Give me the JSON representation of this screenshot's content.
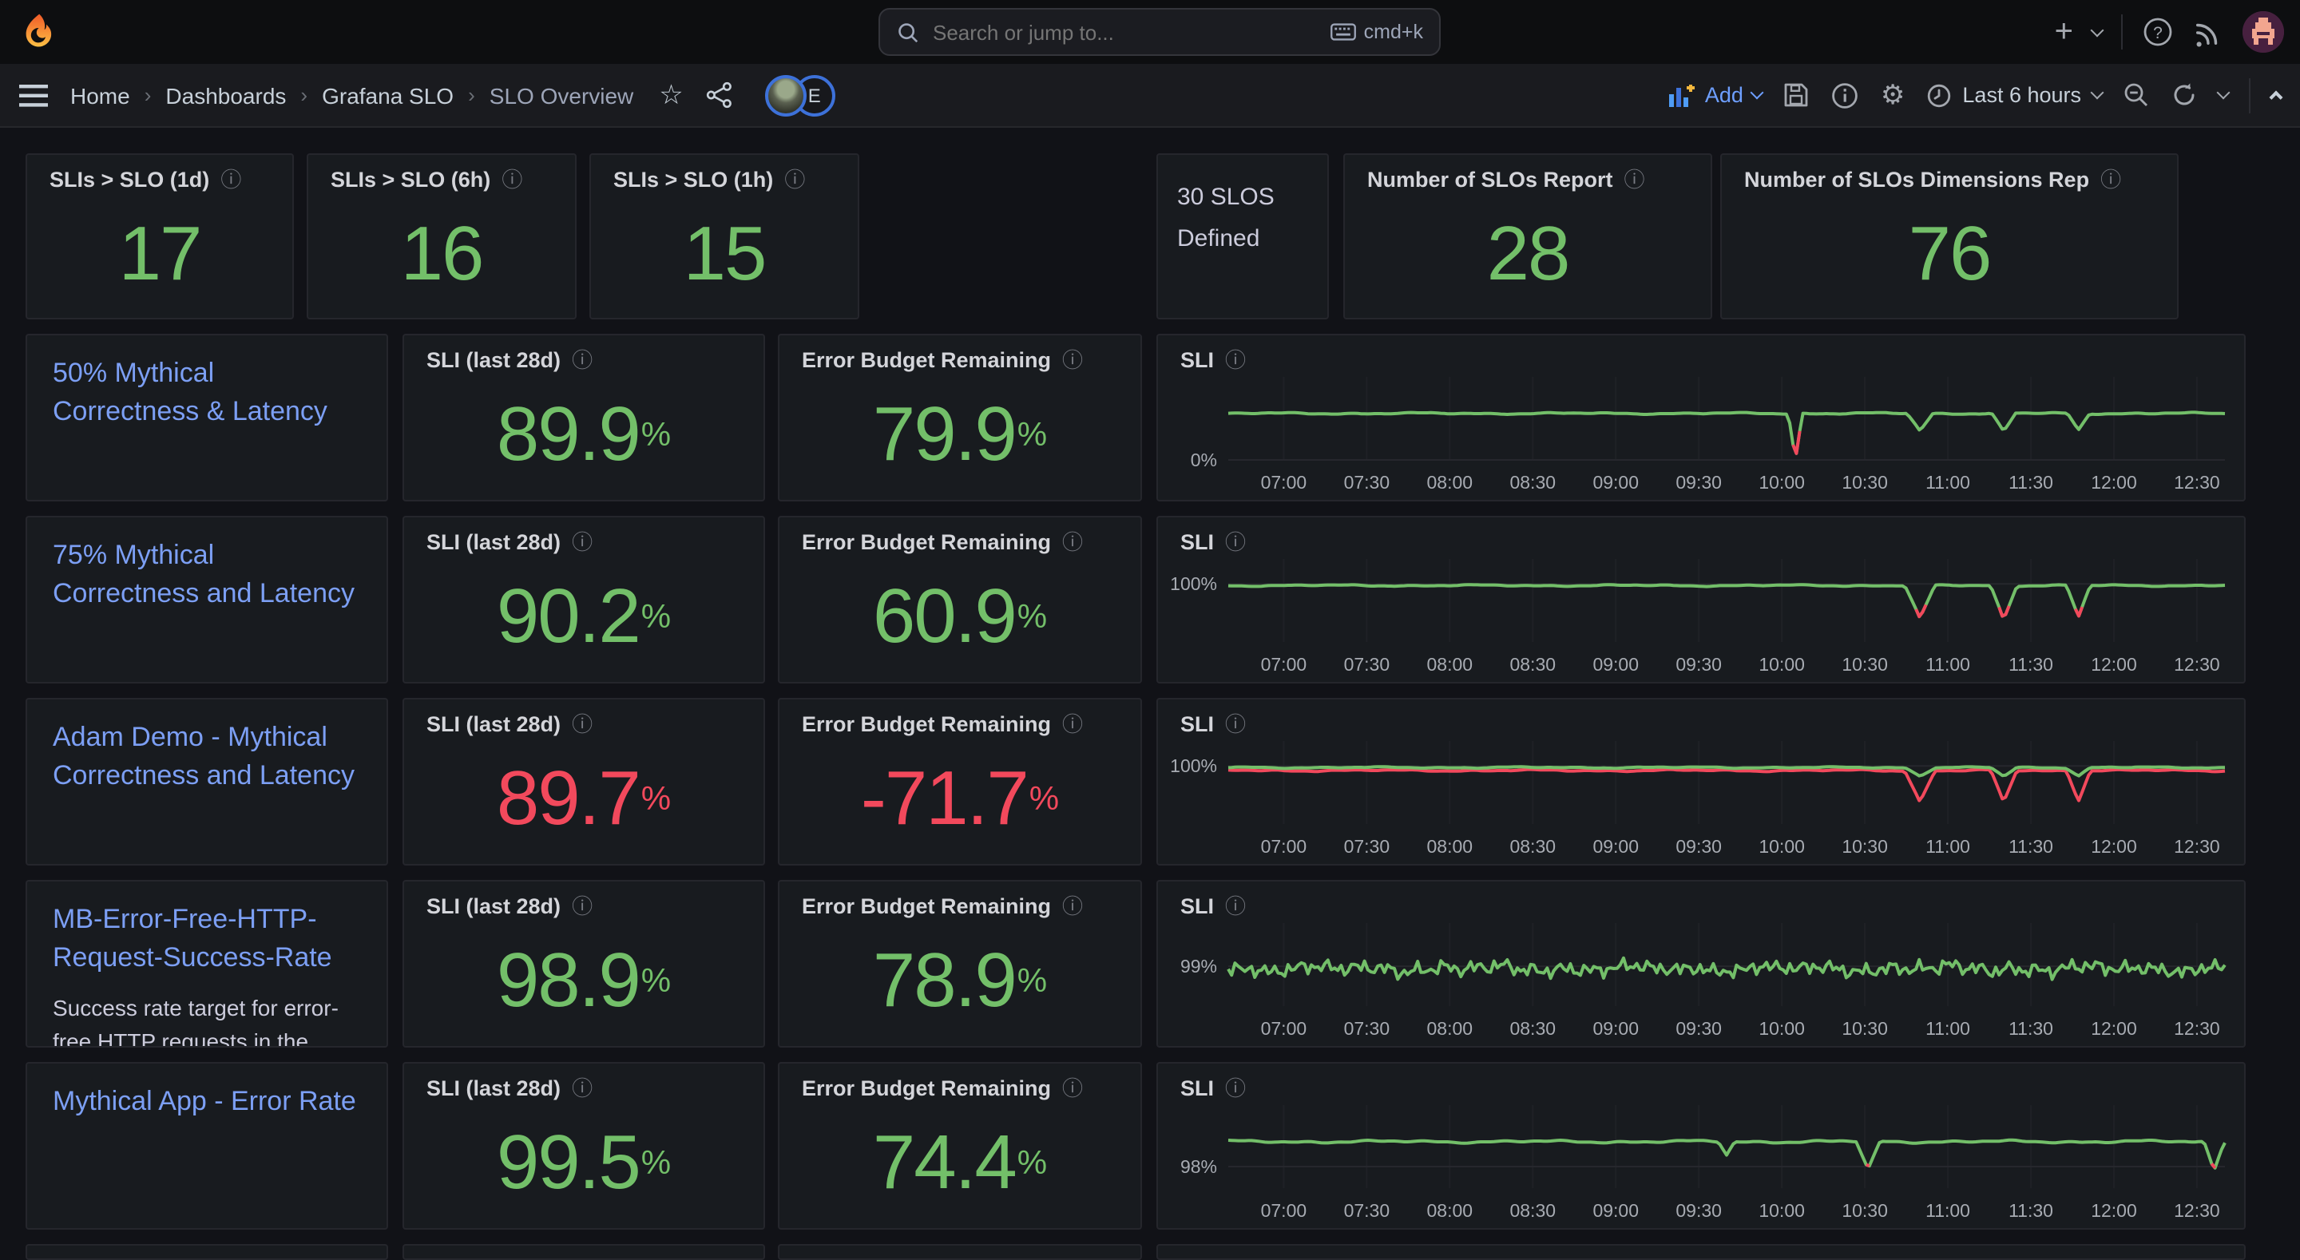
{
  "colors": {
    "green": "#73BF69",
    "red": "#F2495C",
    "link_blue": "#7C9FF4",
    "accent_blue": "#6E9FFF"
  },
  "topbar": {
    "search_placeholder": "Search or jump to...",
    "shortcut": "cmd+k"
  },
  "breadcrumb": {
    "items": [
      "Home",
      "Dashboards",
      "Grafana SLO",
      "SLO Overview"
    ],
    "avatar_badge": "E"
  },
  "toolbar": {
    "add_label": "Add",
    "time_range": "Last 6 hours"
  },
  "stats": [
    {
      "title": "SLIs > SLO (1d)",
      "value": "17",
      "color": "#73BF69"
    },
    {
      "title": "SLIs > SLO (6h)",
      "value": "16",
      "color": "#73BF69"
    },
    {
      "title": "SLIs > SLO (1h)",
      "value": "15",
      "color": "#73BF69"
    },
    {
      "text": "30 SLOS\nDefined"
    },
    {
      "title": "Number of SLOs Report",
      "value": "28",
      "color": "#73BF69"
    },
    {
      "title": "Number of SLOs Dimensions Rep",
      "value": "76",
      "color": "#73BF69"
    }
  ],
  "rows": [
    {
      "title": "50% Mythical Correctness & Latency",
      "description": "",
      "sli_label": "SLI (last 28d)",
      "sli_value": "89.9",
      "sli_unit": "%",
      "sli_color": "#73BF69",
      "eb_label": "Error Budget Remaining",
      "eb_value": "79.9",
      "eb_unit": "%",
      "eb_color": "#73BF69",
      "chart_title": "SLI"
    },
    {
      "title": "75% Mythical Correctness and Latency",
      "description": "",
      "sli_label": "SLI (last 28d)",
      "sli_value": "90.2",
      "sli_unit": "%",
      "sli_color": "#73BF69",
      "eb_label": "Error Budget Remaining",
      "eb_value": "60.9",
      "eb_unit": "%",
      "eb_color": "#73BF69",
      "chart_title": "SLI"
    },
    {
      "title": "Adam Demo - Mythical Correctness and Latency",
      "description": "",
      "sli_label": "SLI (last 28d)",
      "sli_value": "89.7",
      "sli_unit": "%",
      "sli_color": "#F2495C",
      "eb_label": "Error Budget Remaining",
      "eb_value": "-71.7",
      "eb_unit": "%",
      "eb_color": "#F2495C",
      "chart_title": "SLI"
    },
    {
      "title": "MB-Error-Free-HTTP-Request-Success-Rate",
      "description": "Success rate target for error-free HTTP requests in the",
      "sli_label": "SLI (last 28d)",
      "sli_value": "98.9",
      "sli_unit": "%",
      "sli_color": "#73BF69",
      "eb_label": "Error Budget Remaining",
      "eb_value": "78.9",
      "eb_unit": "%",
      "eb_color": "#73BF69",
      "chart_title": "SLI"
    },
    {
      "title": "Mythical App - Error Rate",
      "description": "",
      "sli_label": "SLI (last 28d)",
      "sli_value": "99.5",
      "sli_unit": "%",
      "sli_color": "#73BF69",
      "eb_label": "Error Budget Remaining",
      "eb_value": "74.4",
      "eb_unit": "%",
      "eb_color": "#73BF69",
      "chart_title": "SLI"
    }
  ],
  "chart_data": [
    {
      "type": "line",
      "title": "SLI",
      "legend": false,
      "grid": true,
      "x_ticks": [
        "07:00",
        "07:30",
        "08:00",
        "08:30",
        "09:00",
        "09:30",
        "10:00",
        "10:30",
        "11:00",
        "11:30",
        "12:00",
        "12:30"
      ],
      "y_axis_tick": "0%",
      "y_tick_frac": 1.0,
      "note": "frac units: 0=plot top, 1=plot bottom (0% line). Flat SLI line ~mid, red spike to 0% at 10:05, green dips 10:50/11:20/11:45",
      "series": [
        {
          "color": "#73BF69",
          "baseline_frac": 0.44,
          "noise_frac": 0.013,
          "seed": 3,
          "red_above": 0.62,
          "events": [
            {
              "x": 0.569,
              "w": 0.007,
              "depth": 0.56,
              "label": "10:05 red spike to 0%"
            },
            {
              "x": 0.694,
              "w": 0.013,
              "depth": 0.21,
              "label": "10:50 dip"
            },
            {
              "x": 0.778,
              "w": 0.012,
              "depth": 0.22,
              "label": "11:20 dip"
            },
            {
              "x": 0.853,
              "w": 0.011,
              "depth": 0.2,
              "label": "11:45 dip"
            }
          ]
        }
      ]
    },
    {
      "type": "line",
      "title": "SLI",
      "legend": false,
      "grid": true,
      "x_ticks": [
        "07:00",
        "07:30",
        "08:00",
        "08:30",
        "09:00",
        "09:30",
        "10:00",
        "10:30",
        "11:00",
        "11:30",
        "12:00",
        "12:30"
      ],
      "y_axis_tick": "100%",
      "y_tick_frac": 0.3,
      "note": "flat at 100%, three dips with red bottoms at 10:50/11:20/11:45",
      "series": [
        {
          "color": "#73BF69",
          "baseline_frac": 0.32,
          "noise_frac": 0.012,
          "seed": 7,
          "red_above": 0.52,
          "events": [
            {
              "x": 0.694,
              "w": 0.015,
              "depth": 0.4,
              "label": "10:50 dip"
            },
            {
              "x": 0.778,
              "w": 0.013,
              "depth": 0.41,
              "label": "11:20 dip"
            },
            {
              "x": 0.853,
              "w": 0.012,
              "depth": 0.38,
              "label": "11:45 dip"
            }
          ]
        }
      ]
    },
    {
      "type": "line",
      "title": "SLI",
      "legend": false,
      "grid": true,
      "x_ticks": [
        "07:00",
        "07:30",
        "08:00",
        "08:30",
        "09:00",
        "09:30",
        "10:00",
        "10:30",
        "11:00",
        "11:30",
        "12:00",
        "12:30"
      ],
      "y_axis_tick": "100%",
      "y_tick_frac": 0.3,
      "note": "green at 100% with red series hugging just below; red dips at 10:50/11:20/11:45",
      "series": [
        {
          "color": "#F2495C",
          "baseline_frac": 0.355,
          "noise_frac": 0.014,
          "seed": 11,
          "events": [
            {
              "x": 0.694,
              "w": 0.015,
              "depth": 0.38
            },
            {
              "x": 0.778,
              "w": 0.013,
              "depth": 0.39
            },
            {
              "x": 0.853,
              "w": 0.012,
              "depth": 0.36
            }
          ]
        },
        {
          "color": "#73BF69",
          "baseline_frac": 0.32,
          "noise_frac": 0.011,
          "seed": 5,
          "events": [
            {
              "x": 0.694,
              "w": 0.015,
              "depth": 0.1
            },
            {
              "x": 0.778,
              "w": 0.013,
              "depth": 0.11
            },
            {
              "x": 0.853,
              "w": 0.012,
              "depth": 0.1
            }
          ]
        }
      ]
    },
    {
      "type": "line",
      "title": "SLI",
      "legend": false,
      "grid": true,
      "x_ticks": [
        "07:00",
        "07:30",
        "08:00",
        "08:30",
        "09:00",
        "09:30",
        "10:00",
        "10:30",
        "11:00",
        "11:30",
        "12:00",
        "12:30"
      ],
      "y_axis_tick": "99%",
      "y_tick_frac": 0.52,
      "note": "noisy line oscillating around 99%",
      "series": [
        {
          "color": "#73BF69",
          "baseline_frac": 0.55,
          "noise_frac": 0.1,
          "seed": 13,
          "rough": true,
          "events": []
        }
      ]
    },
    {
      "type": "line",
      "title": "SLI",
      "legend": false,
      "grid": true,
      "x_ticks": [
        "07:00",
        "07:30",
        "08:00",
        "08:30",
        "09:00",
        "09:30",
        "10:00",
        "10:30",
        "11:00",
        "11:30",
        "12:00",
        "12:30"
      ],
      "y_axis_tick": "98%",
      "y_tick_frac": 0.74,
      "note": "line ~98.5%, small dip 09:40, dips below 98% (red tips) at 10:30 and 12:35",
      "series": [
        {
          "color": "#73BF69",
          "baseline_frac": 0.44,
          "noise_frac": 0.02,
          "seed": 17,
          "red_above": 0.7,
          "events": [
            {
              "x": 0.5,
              "w": 0.008,
              "depth": 0.16,
              "label": "09:40 small dip"
            },
            {
              "x": 0.642,
              "w": 0.012,
              "depth": 0.34,
              "label": "10:30 dip below 98%"
            },
            {
              "x": 0.989,
              "w": 0.01,
              "depth": 0.35,
              "label": "12:35 dip below 98%"
            }
          ]
        }
      ]
    }
  ]
}
